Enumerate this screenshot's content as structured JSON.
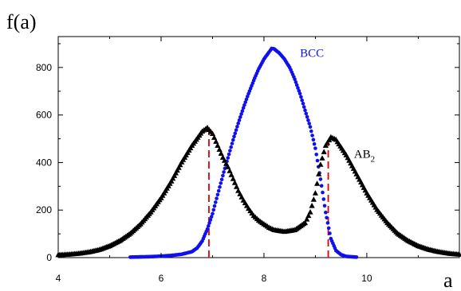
{
  "chart_data": {
    "type": "scatter",
    "title": "",
    "ylabel": "f(a)",
    "xlabel": "a",
    "xlim": [
      4,
      11.8
    ],
    "ylim": [
      0,
      930
    ],
    "xticks": [
      4,
      6,
      8,
      10
    ],
    "yticks": [
      0,
      200,
      400,
      600,
      800
    ],
    "xtick_labels": [
      "4",
      "6",
      "8",
      "10"
    ],
    "ytick_labels": [
      "0",
      "200",
      "400",
      "600",
      "800"
    ],
    "grid": false,
    "series": [
      {
        "name": "BCC",
        "color": "#1010ee",
        "marker": "circle",
        "points": [
          [
            5.4,
            2
          ],
          [
            5.6,
            3
          ],
          [
            5.8,
            4
          ],
          [
            6.0,
            6
          ],
          [
            6.2,
            9
          ],
          [
            6.4,
            14
          ],
          [
            6.6,
            25
          ],
          [
            6.7,
            40
          ],
          [
            6.8,
            70
          ],
          [
            6.9,
            120
          ],
          [
            7.0,
            185
          ],
          [
            7.1,
            265
          ],
          [
            7.2,
            345
          ],
          [
            7.3,
            420
          ],
          [
            7.4,
            495
          ],
          [
            7.5,
            565
          ],
          [
            7.6,
            630
          ],
          [
            7.7,
            690
          ],
          [
            7.8,
            745
          ],
          [
            7.9,
            795
          ],
          [
            8.0,
            835
          ],
          [
            8.1,
            865
          ],
          [
            8.15,
            880
          ],
          [
            8.2,
            878
          ],
          [
            8.3,
            860
          ],
          [
            8.4,
            835
          ],
          [
            8.5,
            800
          ],
          [
            8.6,
            750
          ],
          [
            8.7,
            690
          ],
          [
            8.8,
            620
          ],
          [
            8.9,
            550
          ],
          [
            9.0,
            460
          ],
          [
            9.1,
            330
          ],
          [
            9.2,
            190
          ],
          [
            9.3,
            80
          ],
          [
            9.4,
            30
          ],
          [
            9.5,
            12
          ],
          [
            9.6,
            5
          ],
          [
            9.8,
            2
          ]
        ]
      },
      {
        "name": "AB2",
        "color": "#000000",
        "marker": "triangle",
        "points": [
          [
            4.0,
            10
          ],
          [
            4.2,
            12
          ],
          [
            4.4,
            16
          ],
          [
            4.6,
            22
          ],
          [
            4.8,
            32
          ],
          [
            5.0,
            48
          ],
          [
            5.2,
            70
          ],
          [
            5.4,
            100
          ],
          [
            5.6,
            140
          ],
          [
            5.8,
            190
          ],
          [
            6.0,
            250
          ],
          [
            6.2,
            320
          ],
          [
            6.4,
            400
          ],
          [
            6.6,
            470
          ],
          [
            6.8,
            530
          ],
          [
            6.9,
            545
          ],
          [
            7.0,
            520
          ],
          [
            7.1,
            470
          ],
          [
            7.2,
            420
          ],
          [
            7.3,
            380
          ],
          [
            7.4,
            330
          ],
          [
            7.5,
            280
          ],
          [
            7.6,
            240
          ],
          [
            7.7,
            205
          ],
          [
            7.8,
            175
          ],
          [
            7.9,
            155
          ],
          [
            8.0,
            140
          ],
          [
            8.1,
            125
          ],
          [
            8.2,
            115
          ],
          [
            8.4,
            108
          ],
          [
            8.6,
            115
          ],
          [
            8.8,
            145
          ],
          [
            8.9,
            190
          ],
          [
            9.0,
            270
          ],
          [
            9.1,
            390
          ],
          [
            9.2,
            470
          ],
          [
            9.3,
            505
          ],
          [
            9.4,
            495
          ],
          [
            9.6,
            430
          ],
          [
            9.8,
            350
          ],
          [
            10.0,
            270
          ],
          [
            10.2,
            200
          ],
          [
            10.4,
            145
          ],
          [
            10.6,
            100
          ],
          [
            10.8,
            70
          ],
          [
            11.0,
            48
          ],
          [
            11.2,
            33
          ],
          [
            11.4,
            23
          ],
          [
            11.6,
            16
          ],
          [
            11.8,
            12
          ]
        ]
      }
    ],
    "series_labels": [
      {
        "text": "BCC",
        "series": "BCC",
        "at": [
          8.7,
          845
        ]
      },
      {
        "text": "AB",
        "subscript": "2",
        "series": "AB2",
        "at": [
          9.75,
          420
        ]
      }
    ],
    "vlines": [
      {
        "x": 6.93,
        "y1": 0,
        "y2": 540,
        "color": "#e00000",
        "style": "dashed"
      },
      {
        "x": 9.25,
        "y1": 0,
        "y2": 490,
        "color": "#e00000",
        "style": "dashed"
      }
    ]
  }
}
